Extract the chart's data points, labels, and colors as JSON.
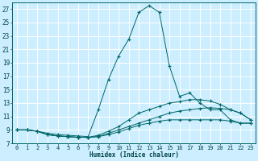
{
  "xlabel": "Humidex (Indice chaleur)",
  "bg_color": "#cceeff",
  "grid_color": "#ffffff",
  "line_color": "#006666",
  "xlim": [
    -0.5,
    23.5
  ],
  "ylim": [
    7,
    28
  ],
  "xticks": [
    0,
    1,
    2,
    3,
    4,
    5,
    6,
    7,
    8,
    9,
    10,
    11,
    12,
    13,
    14,
    15,
    16,
    17,
    18,
    19,
    20,
    21,
    22,
    23
  ],
  "yticks": [
    7,
    9,
    11,
    13,
    15,
    17,
    19,
    21,
    23,
    25,
    27
  ],
  "lines": [
    {
      "x": [
        0,
        1,
        2,
        3,
        4,
        5,
        6,
        7,
        8,
        9,
        10,
        11,
        12,
        13,
        14,
        15,
        16,
        17,
        18,
        19,
        20,
        21,
        22,
        23
      ],
      "y": [
        9,
        9,
        8.8,
        8.5,
        8.3,
        8.2,
        8.1,
        8.0,
        12.0,
        16.5,
        20.0,
        22.5,
        26.5,
        27.5,
        26.5,
        18.5,
        14.0,
        14.5,
        13.0,
        12.0,
        12.0,
        10.5,
        10.0,
        10.0
      ]
    },
    {
      "x": [
        0,
        1,
        2,
        3,
        4,
        5,
        6,
        7,
        8,
        9,
        10,
        11,
        12,
        13,
        14,
        15,
        16,
        17,
        18,
        19,
        20,
        21,
        22,
        23
      ],
      "y": [
        9,
        9,
        8.8,
        8.3,
        8.1,
        8.0,
        7.9,
        7.9,
        8.2,
        8.8,
        9.5,
        10.5,
        11.5,
        12.0,
        12.5,
        13.0,
        13.2,
        13.5,
        13.5,
        13.3,
        12.8,
        12.0,
        11.5,
        10.5
      ]
    },
    {
      "x": [
        0,
        1,
        2,
        3,
        4,
        5,
        6,
        7,
        8,
        9,
        10,
        11,
        12,
        13,
        14,
        15,
        16,
        17,
        18,
        19,
        20,
        21,
        22,
        23
      ],
      "y": [
        9,
        9,
        8.8,
        8.3,
        8.1,
        8.0,
        7.9,
        7.9,
        8.0,
        8.5,
        9.0,
        9.5,
        10.0,
        10.5,
        11.0,
        11.5,
        11.8,
        12.0,
        12.2,
        12.3,
        12.2,
        12.0,
        11.5,
        10.5
      ]
    },
    {
      "x": [
        0,
        1,
        2,
        3,
        4,
        5,
        6,
        7,
        8,
        9,
        10,
        11,
        12,
        13,
        14,
        15,
        16,
        17,
        18,
        19,
        20,
        21,
        22,
        23
      ],
      "y": [
        9,
        9,
        8.8,
        8.3,
        8.1,
        8.0,
        7.9,
        7.9,
        8.0,
        8.3,
        8.7,
        9.2,
        9.7,
        10.0,
        10.3,
        10.5,
        10.5,
        10.5,
        10.5,
        10.5,
        10.5,
        10.3,
        10.0,
        10.0
      ]
    }
  ]
}
